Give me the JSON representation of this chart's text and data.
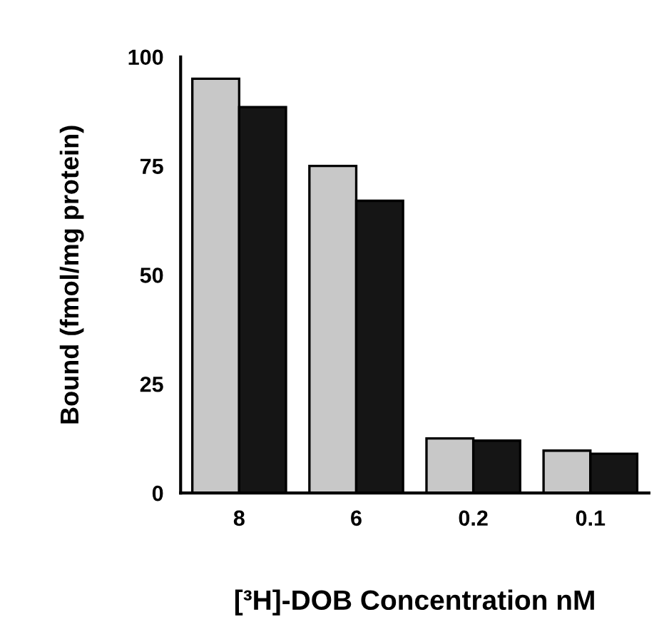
{
  "chart_data": {
    "type": "bar",
    "xlabel": "[³H]-DOB Concentration nM",
    "ylabel": "Bound (fmol/mg protein)",
    "categories": [
      "8",
      "6",
      "0.2",
      "0.1"
    ],
    "series": [
      {
        "color": "#c8c8c8",
        "values": [
          95,
          75,
          12.5,
          9.7
        ]
      },
      {
        "color": "#151515",
        "values": [
          88.5,
          67,
          12,
          9
        ]
      }
    ],
    "ylim": [
      0,
      100
    ],
    "yticks": [
      0,
      25,
      50,
      75,
      100
    ],
    "grid": false
  }
}
